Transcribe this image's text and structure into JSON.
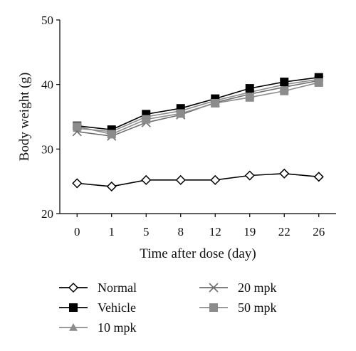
{
  "chart_data": {
    "type": "line",
    "xlabel": "Time after dose (day)",
    "ylabel": "Body weight (g)",
    "categories": [
      "0",
      "1",
      "5",
      "8",
      "12",
      "19",
      "22",
      "26"
    ],
    "ylim": [
      20,
      50
    ],
    "yticks": [
      "20",
      "30",
      "40",
      "50"
    ],
    "grid": false,
    "legend_position": "bottom",
    "series": [
      {
        "name": "Normal",
        "values": [
          24.7,
          24.2,
          25.2,
          25.2,
          25.2,
          25.9,
          26.2,
          25.7
        ],
        "marker": "diamond-open",
        "color": "#000000"
      },
      {
        "name": "Vehicle",
        "values": [
          33.6,
          33.0,
          35.4,
          36.3,
          37.8,
          39.4,
          40.4,
          41.1
        ],
        "marker": "square",
        "color": "#000000"
      },
      {
        "name": "10 mpk",
        "values": [
          33.2,
          32.7,
          35.0,
          35.9,
          37.5,
          38.8,
          40.0,
          40.8
        ],
        "marker": "triangle",
        "color": "#8c8c8c"
      },
      {
        "name": "20 mpk",
        "values": [
          32.7,
          32.0,
          34.1,
          35.3,
          37.2,
          38.5,
          39.6,
          40.6
        ],
        "marker": "x",
        "color": "#6e6e6e"
      },
      {
        "name": "50 mpk",
        "values": [
          33.5,
          32.3,
          34.6,
          35.5,
          37.1,
          38.0,
          39.0,
          40.3
        ],
        "marker": "square",
        "color": "#8c8c8c"
      }
    ]
  }
}
